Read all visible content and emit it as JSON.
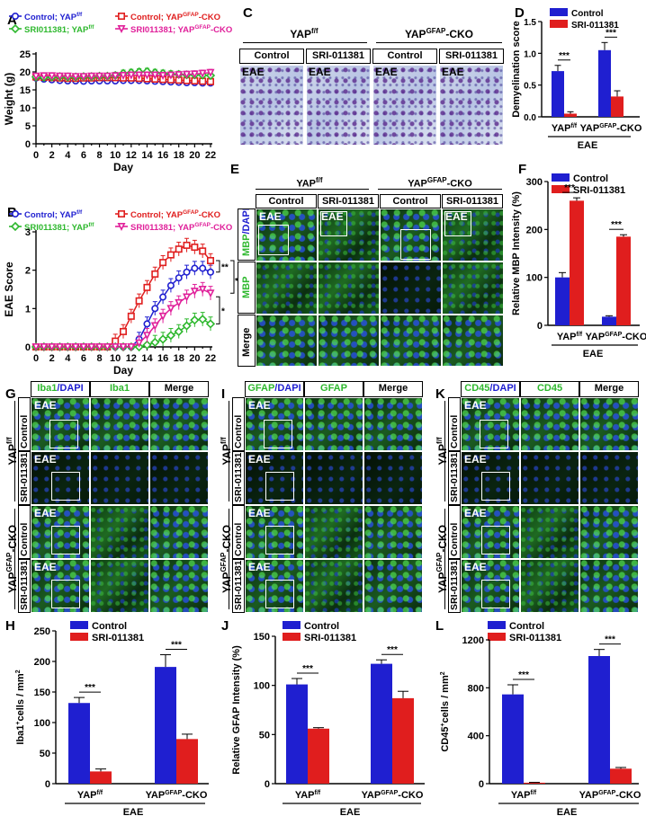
{
  "panel_letters": [
    "A",
    "B",
    "C",
    "D",
    "E",
    "F",
    "G",
    "H",
    "I",
    "J",
    "K",
    "L"
  ],
  "colors": {
    "blue": "#1f1fd0",
    "red": "#e01e1e",
    "green": "#2eb82e",
    "magenta": "#e0209a"
  },
  "chart_data": [
    {
      "id": "A",
      "type": "line",
      "ylabel": "Weight (g)",
      "xlabel": "Day",
      "ylim": [
        0,
        25
      ],
      "yticks": [
        "0",
        "5",
        "10",
        "15",
        "20",
        "25"
      ],
      "x": [
        0,
        1,
        2,
        3,
        4,
        5,
        6,
        7,
        8,
        9,
        10,
        11,
        12,
        13,
        14,
        15,
        16,
        17,
        18,
        19,
        20,
        21,
        22
      ],
      "xticks": [
        "0",
        "2",
        "4",
        "6",
        "8",
        "10",
        "12",
        "14",
        "16",
        "18",
        "20",
        "22"
      ],
      "series": [
        {
          "name": "Control; YAPf/f",
          "label": "Control; YAP",
          "sup": "f/f",
          "color": "#1f1fd0",
          "marker": "o",
          "values": [
            18.3,
            18.0,
            17.8,
            17.6,
            17.5,
            17.5,
            17.4,
            17.5,
            17.5,
            17.5,
            17.5,
            17.6,
            17.6,
            17.6,
            17.5,
            17.4,
            17.3,
            17.2,
            17.1,
            17.0,
            17.0,
            16.9,
            16.9
          ]
        },
        {
          "name": "Control; YAPGFAP-CKO",
          "label": "Control; YAP",
          "sup": "GFAP",
          "tail": "-CKO",
          "color": "#e01e1e",
          "marker": "s",
          "values": [
            18.6,
            18.5,
            18.4,
            18.3,
            18.2,
            18.2,
            18.3,
            18.3,
            18.4,
            18.4,
            18.4,
            18.3,
            18.3,
            18.2,
            18.1,
            18.0,
            17.9,
            17.8,
            17.7,
            17.6,
            17.5,
            17.4,
            17.3
          ]
        },
        {
          "name": "SRI011381; YAPf/f",
          "label": "SRI011381; YAP",
          "sup": "f/f",
          "color": "#2eb82e",
          "marker": "d",
          "values": [
            18.6,
            18.5,
            18.6,
            18.7,
            18.6,
            18.6,
            18.7,
            18.7,
            18.8,
            18.8,
            19.0,
            19.6,
            19.8,
            20.0,
            20.1,
            19.8,
            19.6,
            19.4,
            19.3,
            19.2,
            19.2,
            19.1,
            19.0
          ]
        },
        {
          "name": "SRI011381; YAPGFAP-CKO",
          "label": "SRI011381; YAP",
          "sup": "GFAP",
          "tail": "-CKO",
          "color": "#e0209a",
          "marker": "v",
          "values": [
            18.8,
            18.9,
            18.9,
            18.8,
            18.8,
            18.7,
            18.7,
            18.8,
            18.8,
            18.8,
            18.9,
            19.0,
            19.1,
            19.1,
            19.1,
            19.1,
            19.0,
            19.1,
            19.2,
            19.3,
            19.4,
            19.6,
            19.8
          ]
        }
      ]
    },
    {
      "id": "B",
      "type": "line",
      "ylabel": "EAE Score",
      "xlabel": "Day",
      "ylim": [
        0,
        3
      ],
      "yticks": [
        "0",
        "1",
        "2",
        "3"
      ],
      "x": [
        0,
        1,
        2,
        3,
        4,
        5,
        6,
        7,
        8,
        9,
        10,
        11,
        12,
        13,
        14,
        15,
        16,
        17,
        18,
        19,
        20,
        21,
        22
      ],
      "xticks": [
        "0",
        "2",
        "4",
        "6",
        "8",
        "10",
        "12",
        "14",
        "16",
        "18",
        "20",
        "22"
      ],
      "significance": [
        "**",
        "**",
        "*"
      ],
      "series": [
        {
          "name": "Control; YAPf/f",
          "label": "Control; YAP",
          "sup": "f/f",
          "color": "#1f1fd0",
          "marker": "o",
          "values": [
            0,
            0,
            0,
            0,
            0,
            0,
            0,
            0,
            0,
            0,
            0,
            0,
            0,
            0.2,
            0.6,
            1.0,
            1.3,
            1.6,
            1.8,
            1.95,
            2.05,
            2.05,
            1.95
          ]
        },
        {
          "name": "Control; YAPGFAP-CKO",
          "label": "Control; YAP",
          "sup": "GFAP",
          "tail": "-CKO",
          "color": "#e01e1e",
          "marker": "s",
          "values": [
            0,
            0,
            0,
            0,
            0,
            0,
            0,
            0,
            0,
            0,
            0.15,
            0.4,
            0.8,
            1.2,
            1.55,
            1.9,
            2.2,
            2.4,
            2.55,
            2.65,
            2.6,
            2.5,
            2.25
          ]
        },
        {
          "name": "SRI011381; YAPf/f",
          "label": "SRI011381; YAP",
          "sup": "f/f",
          "color": "#2eb82e",
          "marker": "d",
          "values": [
            0,
            0,
            0,
            0,
            0,
            0,
            0,
            0,
            0,
            0,
            0,
            0,
            0,
            0,
            0.05,
            0.12,
            0.2,
            0.3,
            0.4,
            0.55,
            0.7,
            0.72,
            0.6
          ]
        },
        {
          "name": "SRI011381; YAPGFAP-CKO",
          "label": "SRI011381; YAP",
          "sup": "GFAP",
          "tail": "-CKO",
          "color": "#e0209a",
          "marker": "v",
          "values": [
            0,
            0,
            0,
            0,
            0,
            0,
            0,
            0,
            0,
            0,
            0,
            0,
            0,
            0.1,
            0.3,
            0.55,
            0.8,
            1.0,
            1.15,
            1.3,
            1.45,
            1.5,
            1.4
          ]
        }
      ]
    },
    {
      "id": "D",
      "type": "bar",
      "ylabel": "Demyelination score",
      "ylim": [
        0,
        1.5
      ],
      "yticks": [
        "0.0",
        "0.5",
        "1.0",
        "1.5"
      ],
      "group_sub": "EAE",
      "categories": [
        {
          "main": "YAP",
          "sup": "f/f",
          "tail": ""
        },
        {
          "main": "YAP",
          "sup": "GFAP",
          "tail": "-CKO"
        }
      ],
      "series": [
        {
          "name": "Control",
          "color": "#1f1fd0",
          "values": [
            0.72,
            1.05
          ],
          "errors": [
            0.09,
            0.12
          ]
        },
        {
          "name": "SRI-011381",
          "color": "#e01e1e",
          "values": [
            0.05,
            0.32
          ],
          "errors": [
            0.03,
            0.09
          ]
        }
      ],
      "significance": [
        "***",
        "***"
      ]
    },
    {
      "id": "F",
      "type": "bar",
      "ylabel": "Relative MBP Intensity (%)",
      "ylim": [
        0,
        300
      ],
      "yticks": [
        "0",
        "100",
        "200",
        "300"
      ],
      "group_sub": "EAE",
      "categories": [
        {
          "main": "YAP",
          "sup": "f/f",
          "tail": ""
        },
        {
          "main": "YAP",
          "sup": "GFAP",
          "tail": "-CKO"
        }
      ],
      "series": [
        {
          "name": "Control",
          "color": "#1f1fd0",
          "values": [
            100,
            18
          ],
          "errors": [
            10,
            2
          ]
        },
        {
          "name": "SRI-011381",
          "color": "#e01e1e",
          "values": [
            260,
            185
          ],
          "errors": [
            6,
            4
          ]
        }
      ],
      "significance": [
        "***",
        "***"
      ]
    },
    {
      "id": "H",
      "type": "bar",
      "ylabel": "Iba1+cells / mm2",
      "ylabel_main": "Iba1",
      "ylabel_sup": "+",
      "ylabel_mid": "cells / mm",
      "ylabel_sup2": "2",
      "ylim": [
        0,
        250
      ],
      "yticks": [
        "0",
        "50",
        "100",
        "150",
        "200",
        "250"
      ],
      "group_sub": "EAE",
      "categories": [
        {
          "main": "YAP",
          "sup": "f/f",
          "tail": ""
        },
        {
          "main": "YAP",
          "sup": "GFAP",
          "tail": "-CKO"
        }
      ],
      "series": [
        {
          "name": "Control",
          "color": "#1f1fd0",
          "values": [
            132,
            191
          ],
          "errors": [
            9,
            20
          ]
        },
        {
          "name": "SRI-011381",
          "color": "#e01e1e",
          "values": [
            20,
            73
          ],
          "errors": [
            4,
            8
          ]
        }
      ],
      "significance": [
        "***",
        "***"
      ]
    },
    {
      "id": "J",
      "type": "bar",
      "ylabel": "Relative GFAP Intensity (%)",
      "ylim": [
        0,
        150
      ],
      "yticks": [
        "0",
        "50",
        "100",
        "150"
      ],
      "group_sub": "EAE",
      "categories": [
        {
          "main": "YAP",
          "sup": "f/f",
          "tail": ""
        },
        {
          "main": "YAP",
          "sup": "GFAP",
          "tail": "-CKO"
        }
      ],
      "series": [
        {
          "name": "Control",
          "color": "#1f1fd0",
          "values": [
            101,
            122
          ],
          "errors": [
            6,
            4
          ]
        },
        {
          "name": "SRI-011381",
          "color": "#e01e1e",
          "values": [
            56,
            87
          ],
          "errors": [
            1,
            7
          ]
        }
      ],
      "significance": [
        "***",
        "***"
      ]
    },
    {
      "id": "L",
      "type": "bar",
      "ylabel": "CD45+cells / mm2",
      "ylabel_main": "CD45",
      "ylabel_sup": "+",
      "ylabel_mid": "cells / mm",
      "ylabel_sup2": "2",
      "ylim": [
        0,
        1200
      ],
      "yticks": [
        "0",
        "400",
        "800",
        "1200"
      ],
      "group_sub": "EAE",
      "categories": [
        {
          "main": "YAP",
          "sup": "f/f",
          "tail": ""
        },
        {
          "main": "YAP",
          "sup": "GFAP",
          "tail": "-CKO"
        }
      ],
      "series": [
        {
          "name": "Control",
          "color": "#1f1fd0",
          "values": [
            745,
            1065
          ],
          "errors": [
            80,
            55
          ]
        },
        {
          "name": "SRI-011381",
          "color": "#e01e1e",
          "values": [
            8,
            125
          ],
          "errors": [
            3,
            10
          ]
        }
      ],
      "significance": [
        "***",
        "***"
      ]
    }
  ],
  "panel_C": {
    "groups": [
      {
        "main": "YAP",
        "sup": "f/f",
        "tail": ""
      },
      {
        "main": "YAP",
        "sup": "GFAP",
        "tail": "-CKO"
      }
    ],
    "columns": [
      "Control",
      "SRI-011381",
      "Control",
      "SRI-011381"
    ],
    "tag": "EAE"
  },
  "panel_E": {
    "groups": [
      {
        "main": "YAP",
        "sup": "f/f",
        "tail": ""
      },
      {
        "main": "YAP",
        "sup": "GFAP",
        "tail": "-CKO"
      }
    ],
    "columns": [
      "Control",
      "SRI-011381",
      "Control",
      "SRI-011381"
    ],
    "rows": [
      {
        "label": "MBP/DAPI",
        "green": "MBP",
        "blue": "/DAPI"
      },
      {
        "label": "MBP",
        "green": "MBP",
        "blue": ""
      },
      {
        "label": "Merge",
        "green": "",
        "blue": "Merge"
      }
    ],
    "tag": "EAE"
  },
  "panel_G": {
    "columns": [
      "Iba1/DAPI",
      "Iba1",
      "Merge"
    ],
    "col_green": [
      "Iba1",
      "Iba1",
      ""
    ],
    "col_blue": [
      "/DAPI",
      "",
      "Merge"
    ],
    "rows": [
      "Control",
      "SRI-011381",
      "Control",
      "SRI-011381"
    ],
    "groups": [
      {
        "main": "YAP",
        "sup": "f/f",
        "tail": ""
      },
      {
        "main": "YAP",
        "sup": "GFAP",
        "tail": "-CKO"
      }
    ],
    "tag": "EAE"
  },
  "panel_I": {
    "columns": [
      "GFAP/DAPI",
      "GFAP",
      "Merge"
    ],
    "col_green": [
      "GFAP",
      "GFAP",
      ""
    ],
    "col_blue": [
      "/DAPI",
      "",
      "Merge"
    ],
    "rows": [
      "Control",
      "SRI-011381",
      "Control",
      "SRI-011381"
    ],
    "groups": [
      {
        "main": "YAP",
        "sup": "f/f",
        "tail": ""
      },
      {
        "main": "YAP",
        "sup": "GFAP",
        "tail": "-CKO"
      }
    ],
    "tag": "EAE"
  },
  "panel_K": {
    "columns": [
      "CD45/DAPI",
      "CD45",
      "Merge"
    ],
    "col_green": [
      "CD45",
      "CD45",
      ""
    ],
    "col_blue": [
      "/DAPI",
      "",
      "Merge"
    ],
    "rows": [
      "Control",
      "SRI-011381",
      "Control",
      "SRI-011381"
    ],
    "groups": [
      {
        "main": "YAP",
        "sup": "f/f",
        "tail": ""
      },
      {
        "main": "YAP",
        "sup": "GFAP",
        "tail": "-CKO"
      }
    ],
    "tag": "EAE"
  }
}
